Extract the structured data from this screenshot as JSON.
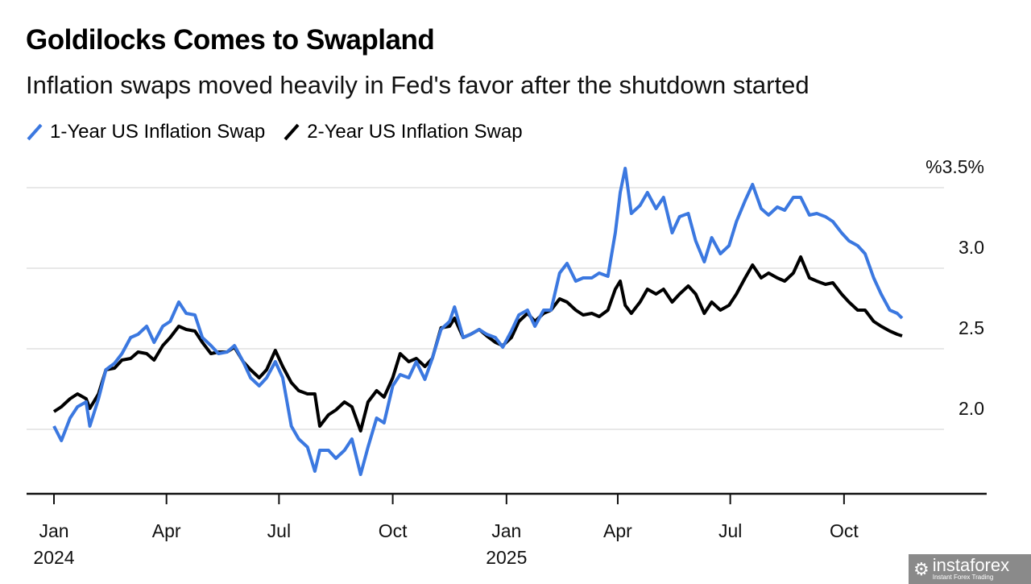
{
  "chart_data": {
    "type": "line",
    "title": "Goldilocks Comes to Swapland",
    "subtitle": "Inflation swaps moved heavily in Fed's favor after the shutdown started",
    "legend_placement": "top-left",
    "grid": true,
    "y_axis": {
      "position": "right",
      "ticks": [
        3.5,
        3.0,
        2.5,
        2.0
      ],
      "tick_labels": [
        "%3.5%",
        "3.0",
        "2.5",
        "2.0"
      ],
      "ylim": [
        1.6,
        3.7
      ]
    },
    "x_axis": {
      "ticks": [
        "2024-01-01",
        "2024-04-01",
        "2024-07-01",
        "2024-10-01",
        "2025-01-01",
        "2025-04-01",
        "2025-07-01",
        "2025-10-01"
      ],
      "tick_labels": [
        "Jan",
        "Apr",
        "Jul",
        "Oct",
        "Jan",
        "Apr",
        "Jul",
        "Oct"
      ],
      "year_labels": [
        {
          "at": "2024-01-01",
          "label": "2024"
        },
        {
          "at": "2025-01-01",
          "label": "2025"
        }
      ]
    },
    "x": [
      "2024-01-01",
      "2024-01-07",
      "2024-01-14",
      "2024-01-20",
      "2024-01-27",
      "2024-01-30",
      "2024-02-06",
      "2024-02-12",
      "2024-02-19",
      "2024-02-25",
      "2024-03-03",
      "2024-03-09",
      "2024-03-16",
      "2024-03-22",
      "2024-03-29",
      "2024-04-04",
      "2024-04-11",
      "2024-04-17",
      "2024-04-24",
      "2024-04-30",
      "2024-05-07",
      "2024-05-13",
      "2024-05-20",
      "2024-05-26",
      "2024-06-02",
      "2024-06-08",
      "2024-06-15",
      "2024-06-21",
      "2024-06-28",
      "2024-07-04",
      "2024-07-11",
      "2024-07-17",
      "2024-07-24",
      "2024-07-30",
      "2024-08-03",
      "2024-08-10",
      "2024-08-16",
      "2024-08-23",
      "2024-08-29",
      "2024-09-05",
      "2024-09-11",
      "2024-09-18",
      "2024-09-24",
      "2024-10-01",
      "2024-10-07",
      "2024-10-14",
      "2024-10-20",
      "2024-10-27",
      "2024-11-02",
      "2024-11-09",
      "2024-11-16",
      "2024-11-20",
      "2024-11-27",
      "2024-12-03",
      "2024-12-10",
      "2024-12-16",
      "2024-12-23",
      "2024-12-29",
      "2025-01-05",
      "2025-01-11",
      "2025-01-18",
      "2025-01-24",
      "2025-01-31",
      "2025-02-06",
      "2025-02-13",
      "2025-02-19",
      "2025-02-26",
      "2025-03-04",
      "2025-03-11",
      "2025-03-17",
      "2025-03-24",
      "2025-03-30",
      "2025-04-03",
      "2025-04-07",
      "2025-04-12",
      "2025-04-19",
      "2025-04-25",
      "2025-05-02",
      "2025-05-08",
      "2025-05-15",
      "2025-05-21",
      "2025-05-28",
      "2025-06-03",
      "2025-06-10",
      "2025-06-16",
      "2025-06-23",
      "2025-06-30",
      "2025-07-06",
      "2025-07-13",
      "2025-07-19",
      "2025-07-26",
      "2025-08-01",
      "2025-08-08",
      "2025-08-14",
      "2025-08-21",
      "2025-08-27",
      "2025-09-03",
      "2025-09-09",
      "2025-09-16",
      "2025-09-22",
      "2025-09-29",
      "2025-10-05",
      "2025-10-12",
      "2025-10-18",
      "2025-10-25",
      "2025-10-31",
      "2025-11-07",
      "2025-11-13",
      "2025-11-17"
    ],
    "series": [
      {
        "name": "1-Year US Inflation Swap",
        "color": "#3b78e0",
        "values": [
          2.02,
          1.93,
          2.07,
          2.14,
          2.17,
          2.02,
          2.19,
          2.37,
          2.41,
          2.47,
          2.57,
          2.59,
          2.64,
          2.54,
          2.64,
          2.67,
          2.79,
          2.72,
          2.71,
          2.57,
          2.52,
          2.47,
          2.48,
          2.52,
          2.42,
          2.32,
          2.27,
          2.32,
          2.42,
          2.32,
          2.02,
          1.94,
          1.89,
          1.74,
          1.87,
          1.87,
          1.82,
          1.87,
          1.94,
          1.72,
          1.89,
          2.07,
          2.04,
          2.27,
          2.34,
          2.32,
          2.42,
          2.31,
          2.44,
          2.62,
          2.67,
          2.76,
          2.57,
          2.59,
          2.62,
          2.59,
          2.57,
          2.51,
          2.61,
          2.71,
          2.74,
          2.64,
          2.74,
          2.74,
          2.97,
          3.03,
          2.92,
          2.94,
          2.94,
          2.97,
          2.95,
          3.22,
          3.47,
          3.62,
          3.34,
          3.39,
          3.47,
          3.37,
          3.44,
          3.22,
          3.32,
          3.34,
          3.17,
          3.04,
          3.19,
          3.09,
          3.14,
          3.29,
          3.42,
          3.52,
          3.37,
          3.33,
          3.38,
          3.36,
          3.44,
          3.44,
          3.33,
          3.34,
          3.32,
          3.29,
          3.22,
          3.17,
          3.14,
          3.09,
          2.94,
          2.84,
          2.74,
          2.72,
          2.69
        ]
      },
      {
        "name": "2-Year US Inflation Swap",
        "color": "#000000",
        "values": [
          2.11,
          2.14,
          2.19,
          2.22,
          2.19,
          2.13,
          2.22,
          2.37,
          2.38,
          2.43,
          2.44,
          2.48,
          2.47,
          2.43,
          2.52,
          2.57,
          2.64,
          2.62,
          2.61,
          2.54,
          2.47,
          2.48,
          2.48,
          2.51,
          2.42,
          2.37,
          2.32,
          2.37,
          2.49,
          2.39,
          2.29,
          2.24,
          2.22,
          2.22,
          2.02,
          2.09,
          2.12,
          2.17,
          2.14,
          1.99,
          2.17,
          2.24,
          2.2,
          2.32,
          2.47,
          2.42,
          2.44,
          2.39,
          2.44,
          2.63,
          2.64,
          2.69,
          2.57,
          2.59,
          2.62,
          2.58,
          2.54,
          2.52,
          2.57,
          2.67,
          2.72,
          2.67,
          2.72,
          2.74,
          2.81,
          2.79,
          2.74,
          2.71,
          2.72,
          2.7,
          2.74,
          2.87,
          2.92,
          2.77,
          2.72,
          2.79,
          2.87,
          2.84,
          2.87,
          2.79,
          2.84,
          2.89,
          2.84,
          2.72,
          2.79,
          2.74,
          2.77,
          2.84,
          2.94,
          3.02,
          2.94,
          2.97,
          2.94,
          2.92,
          2.97,
          3.07,
          2.94,
          2.92,
          2.9,
          2.91,
          2.84,
          2.79,
          2.74,
          2.74,
          2.67,
          2.64,
          2.61,
          2.59,
          2.58
        ]
      }
    ]
  },
  "watermark": {
    "name": "instaforex",
    "tagline": "Instant Forex Trading"
  }
}
